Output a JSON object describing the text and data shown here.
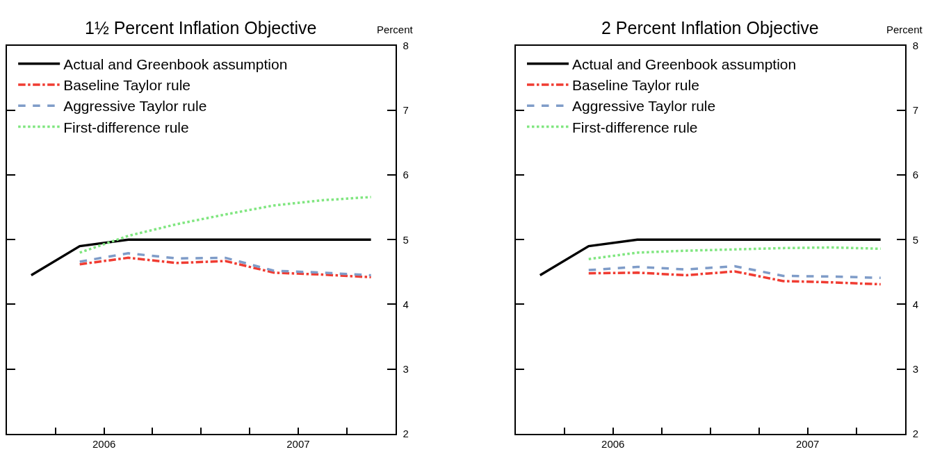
{
  "chart_data": [
    {
      "type": "line",
      "title": "1½ Percent Inflation Objective",
      "ylabel": "Percent",
      "legend": "top left",
      "xlim": [
        2006,
        2008
      ],
      "xticks": [
        {
          "value": 2006.25,
          "label": null
        },
        {
          "value": 2006.5,
          "label": "2006"
        },
        {
          "value": 2006.75,
          "label": null
        },
        {
          "value": 2007,
          "label": null
        },
        {
          "value": 2007.25,
          "label": null
        },
        {
          "value": 2007.5,
          "label": "2007"
        },
        {
          "value": 2007.75,
          "label": null
        }
      ],
      "ylim": [
        2,
        8
      ],
      "yticks": [
        2,
        3,
        4,
        5,
        6,
        7,
        8
      ],
      "series": [
        {
          "name": "Actual and Greenbook assumption",
          "color": "#000000",
          "line_style": "solid",
          "x": [
            2006.125,
            2006.375,
            2006.625,
            2006.875,
            2007.125,
            2007.375,
            2007.625,
            2007.875
          ],
          "values": [
            4.45,
            4.9,
            5.0,
            5.0,
            5.0,
            5.0,
            5.0,
            5.0
          ]
        },
        {
          "name": "Baseline Taylor rule",
          "color": "#f03c32",
          "line_style": "dashdot",
          "x": [
            2006.375,
            2006.625,
            2006.875,
            2007.125,
            2007.375,
            2007.625,
            2007.875
          ],
          "values": [
            4.62,
            4.72,
            4.64,
            4.67,
            4.49,
            4.46,
            4.42
          ]
        },
        {
          "name": "Aggressive Taylor rule",
          "color": "#7f9cc8",
          "line_style": "dashed",
          "x": [
            2006.375,
            2006.625,
            2006.875,
            2007.125,
            2007.375,
            2007.625,
            2007.875
          ],
          "values": [
            4.66,
            4.79,
            4.71,
            4.72,
            4.52,
            4.49,
            4.45
          ]
        },
        {
          "name": "First-difference rule",
          "color": "#80e680",
          "line_style": "dotted",
          "x": [
            2006.375,
            2006.625,
            2006.875,
            2007.125,
            2007.375,
            2007.625,
            2007.875
          ],
          "values": [
            4.8,
            5.06,
            5.24,
            5.39,
            5.53,
            5.61,
            5.66
          ]
        }
      ]
    },
    {
      "type": "line",
      "title": "2 Percent Inflation Objective",
      "ylabel": "Percent",
      "legend": "top left",
      "xlim": [
        2006,
        2008
      ],
      "xticks": [
        {
          "value": 2006.25,
          "label": null
        },
        {
          "value": 2006.5,
          "label": "2006"
        },
        {
          "value": 2006.75,
          "label": null
        },
        {
          "value": 2007,
          "label": null
        },
        {
          "value": 2007.25,
          "label": null
        },
        {
          "value": 2007.5,
          "label": "2007"
        },
        {
          "value": 2007.75,
          "label": null
        }
      ],
      "ylim": [
        2,
        8
      ],
      "yticks": [
        2,
        3,
        4,
        5,
        6,
        7,
        8
      ],
      "series": [
        {
          "name": "Actual and Greenbook assumption",
          "color": "#000000",
          "line_style": "solid",
          "x": [
            2006.125,
            2006.375,
            2006.625,
            2006.875,
            2007.125,
            2007.375,
            2007.625,
            2007.875
          ],
          "values": [
            4.45,
            4.9,
            5.0,
            5.0,
            5.0,
            5.0,
            5.0,
            5.0
          ]
        },
        {
          "name": "Baseline Taylor rule",
          "color": "#f03c32",
          "line_style": "dashdot",
          "x": [
            2006.375,
            2006.625,
            2006.875,
            2007.125,
            2007.375,
            2007.625,
            2007.875
          ],
          "values": [
            4.48,
            4.49,
            4.45,
            4.51,
            4.36,
            4.34,
            4.31
          ]
        },
        {
          "name": "Aggressive Taylor rule",
          "color": "#7f9cc8",
          "line_style": "dashed",
          "x": [
            2006.375,
            2006.625,
            2006.875,
            2007.125,
            2007.375,
            2007.625,
            2007.875
          ],
          "values": [
            4.53,
            4.58,
            4.54,
            4.59,
            4.44,
            4.43,
            4.41
          ]
        },
        {
          "name": "First-difference rule",
          "color": "#80e680",
          "line_style": "dotted",
          "x": [
            2006.375,
            2006.625,
            2006.875,
            2007.125,
            2007.375,
            2007.625,
            2007.875
          ],
          "values": [
            4.7,
            4.8,
            4.83,
            4.85,
            4.87,
            4.88,
            4.86
          ]
        }
      ]
    }
  ]
}
